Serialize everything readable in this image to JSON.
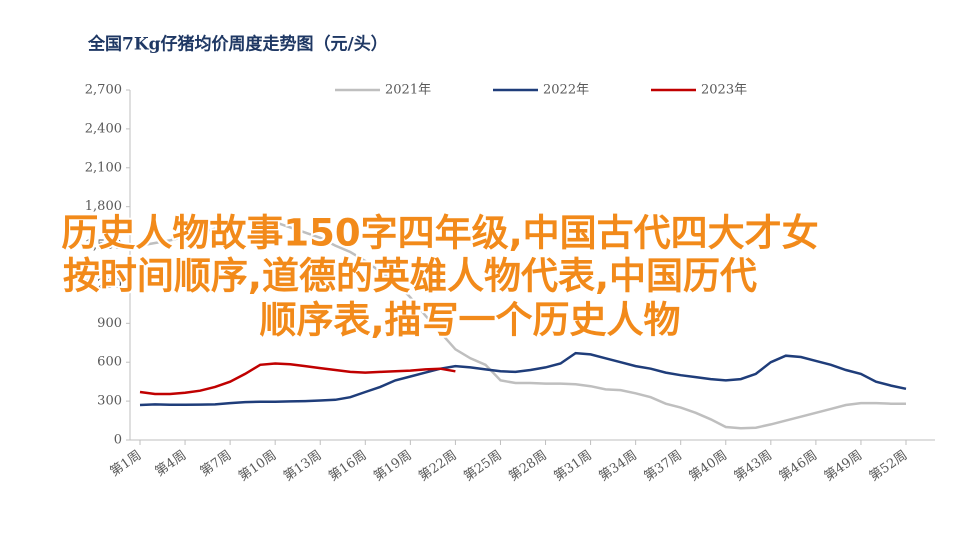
{
  "chart_data": {
    "type": "line",
    "title": "全国7Kg仔猪均价周度走势图（元/头）",
    "categories": [
      "第1周",
      null,
      null,
      "第4周",
      null,
      null,
      "第7周",
      null,
      null,
      "第10周",
      null,
      null,
      "第13周",
      null,
      null,
      "第16周",
      null,
      null,
      "第19周",
      null,
      null,
      "第22周",
      null,
      null,
      "第25周",
      null,
      null,
      "第28周",
      null,
      null,
      "第31周",
      null,
      null,
      "第34周",
      null,
      null,
      "第37周",
      null,
      null,
      "第40周",
      null,
      null,
      "第43周",
      null,
      null,
      "第46周",
      null,
      null,
      "第49周",
      null,
      null,
      "第52周"
    ],
    "series": [
      {
        "name": "2021年",
        "color": "#bfbfbf",
        "values": [
          1500,
          1520,
          1540,
          1570,
          1600,
          1630,
          1660,
          1690,
          1700,
          1680,
          1640,
          1600,
          1560,
          1500,
          1450,
          1380,
          1300,
          1220,
          1100,
          960,
          830,
          700,
          630,
          580,
          460,
          440,
          440,
          435,
          435,
          430,
          415,
          390,
          385,
          360,
          330,
          280,
          250,
          210,
          160,
          100,
          90,
          95,
          120,
          150,
          180,
          210,
          240,
          270,
          285,
          285,
          280,
          280
        ]
      },
      {
        "name": "2022年",
        "color": "#1f3d7a",
        "values": [
          270,
          275,
          272,
          272,
          273,
          275,
          285,
          292,
          295,
          295,
          298,
          300,
          305,
          310,
          330,
          370,
          410,
          460,
          490,
          520,
          550,
          570,
          560,
          545,
          530,
          525,
          540,
          560,
          590,
          670,
          660,
          630,
          600,
          570,
          550,
          520,
          500,
          485,
          470,
          460,
          470,
          510,
          600,
          650,
          640,
          610,
          580,
          540,
          510,
          450,
          420,
          395
        ]
      },
      {
        "name": "2023年",
        "color": "#c00000",
        "values": [
          370,
          355,
          355,
          365,
          380,
          410,
          450,
          510,
          580,
          590,
          585,
          570,
          555,
          540,
          525,
          520,
          525,
          530,
          535,
          545,
          550,
          530,
          null,
          null,
          null,
          null,
          null,
          null,
          null,
          null,
          null,
          null,
          null,
          null,
          null,
          null,
          null,
          null,
          null,
          null,
          null,
          null,
          null,
          null,
          null,
          null,
          null,
          null,
          null,
          null,
          null,
          null
        ]
      }
    ],
    "ylim": [
      0,
      2700
    ],
    "yticks": [
      0,
      300,
      600,
      900,
      {
        "value": 1200,
        "label": "1,200"
      },
      {
        "value": 1500,
        "label": "1,500"
      },
      {
        "value": 1800,
        "label": "1,800"
      },
      {
        "value": 2100,
        "label": "2,100"
      },
      {
        "value": 2400,
        "label": "2,400"
      },
      {
        "value": 2700,
        "label": "2,700"
      }
    ],
    "annotations": [
      "历史人物故事150字四年级,中国古代四大才女",
      "按时间顺序,道德的英雄人物代表,中国历代",
      "顺序表,描写一个历史人物"
    ]
  }
}
